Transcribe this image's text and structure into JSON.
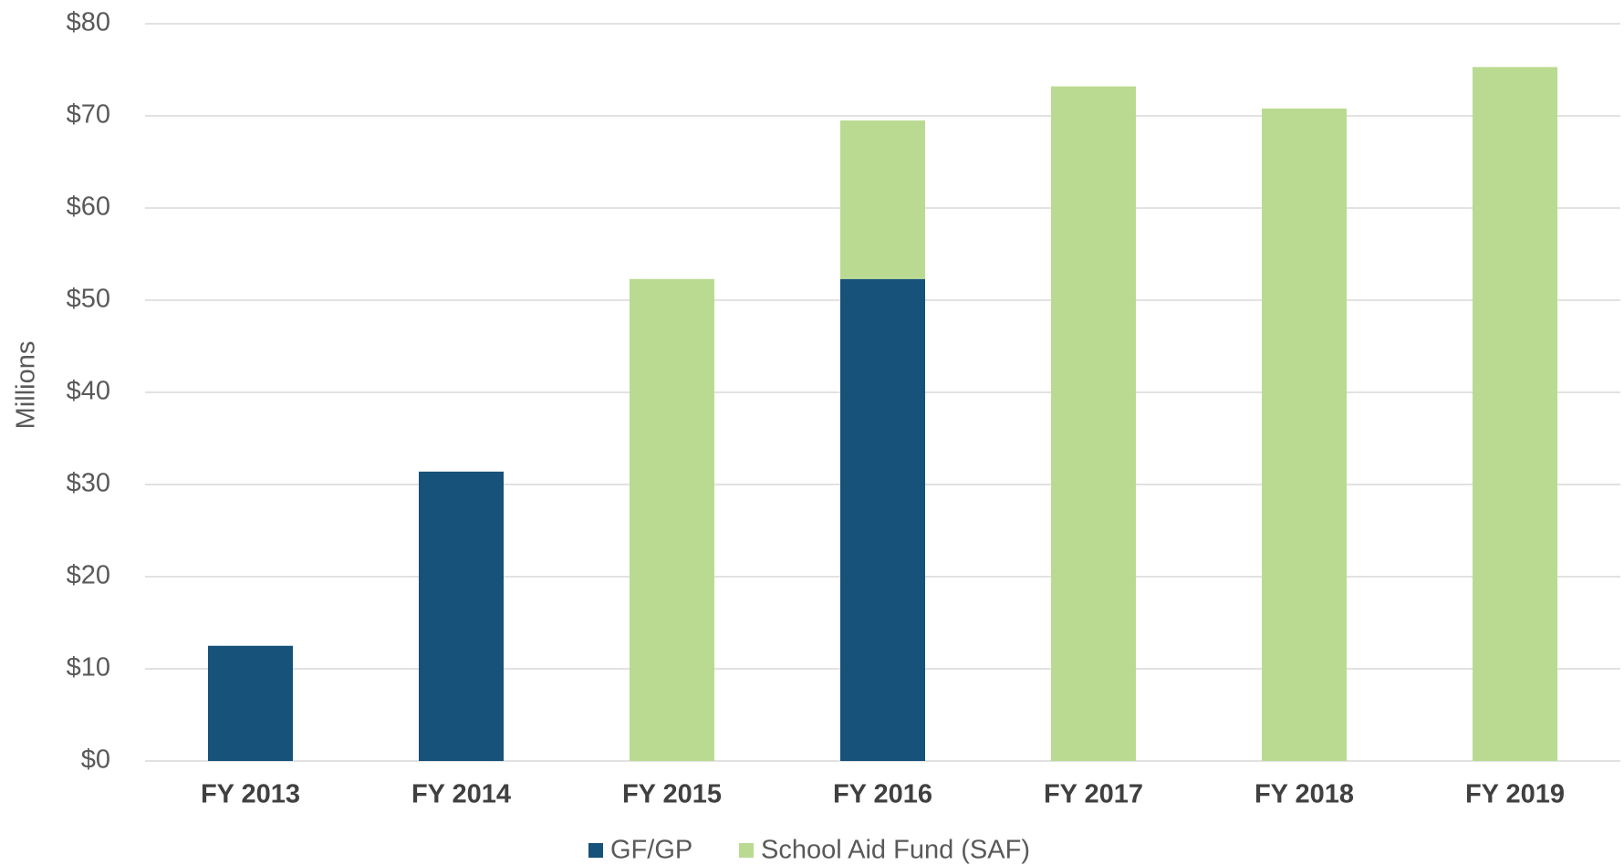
{
  "chart_data": {
    "type": "stacked_bar",
    "y_label": "Millions",
    "categories": [
      "FY 2013",
      "FY 2014",
      "FY 2015",
      "FY 2016",
      "FY 2017",
      "FY 2018",
      "FY 2019"
    ],
    "series": [
      {
        "name": "GF/GP",
        "color": "#16527a",
        "values": [
          12.5,
          31.4,
          0,
          52.3,
          0,
          0,
          0
        ]
      },
      {
        "name": "School Aid Fund (SAF)",
        "color": "#bada92",
        "values": [
          0,
          0,
          52.3,
          17.2,
          73.2,
          70.8,
          75.3
        ]
      }
    ],
    "ylim": [
      0,
      80
    ],
    "yticks": [
      {
        "value": 0,
        "label": "$0"
      },
      {
        "value": 10,
        "label": "$10"
      },
      {
        "value": 20,
        "label": "$20"
      },
      {
        "value": 30,
        "label": "$30"
      },
      {
        "value": 40,
        "label": "$40"
      },
      {
        "value": 50,
        "label": "$50"
      },
      {
        "value": 60,
        "label": "$60"
      },
      {
        "value": 70,
        "label": "$70"
      },
      {
        "value": 80,
        "label": "$80"
      }
    ],
    "grid": true,
    "legend": "bottom"
  }
}
